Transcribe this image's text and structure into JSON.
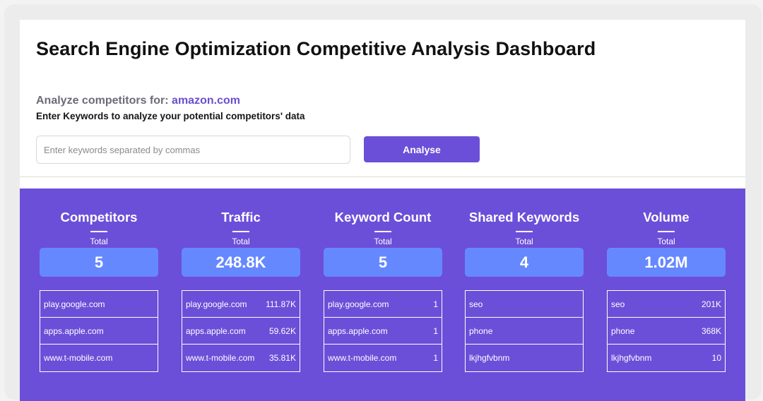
{
  "header": {
    "title": "Search Engine Optimization Competitive Analysis Dashboard",
    "analyze_prefix": "Analyze competitors for:",
    "analyze_domain": "amazon.com",
    "subtitle": "Enter Keywords to analyze your potential competitors' data"
  },
  "form": {
    "placeholder": "Enter keywords separated by commas",
    "value": "",
    "button_label": "Analyse"
  },
  "colors": {
    "accent": "#6b4fd8",
    "value_box": "#6688ff"
  },
  "stats": [
    {
      "title": "Competitors",
      "total_label": "Total",
      "value": "5",
      "rows": [
        {
          "name": "play.google.com",
          "value": ""
        },
        {
          "name": "apps.apple.com",
          "value": ""
        },
        {
          "name": "www.t-mobile.com",
          "value": ""
        }
      ]
    },
    {
      "title": "Traffic",
      "total_label": "Total",
      "value": "248.8K",
      "rows": [
        {
          "name": "play.google.com",
          "value": "111.87K"
        },
        {
          "name": "apps.apple.com",
          "value": "59.62K"
        },
        {
          "name": "www.t-mobile.com",
          "value": "35.81K"
        }
      ]
    },
    {
      "title": "Keyword Count",
      "total_label": "Total",
      "value": "5",
      "rows": [
        {
          "name": "play.google.com",
          "value": "1"
        },
        {
          "name": "apps.apple.com",
          "value": "1"
        },
        {
          "name": "www.t-mobile.com",
          "value": "1"
        }
      ]
    },
    {
      "title": "Shared Keywords",
      "total_label": "Total",
      "value": "4",
      "rows": [
        {
          "name": "seo",
          "value": ""
        },
        {
          "name": "phone",
          "value": ""
        },
        {
          "name": "lkjhgfvbnm",
          "value": ""
        }
      ]
    },
    {
      "title": "Volume",
      "total_label": "Total",
      "value": "1.02M",
      "rows": [
        {
          "name": "seo",
          "value": "201K"
        },
        {
          "name": "phone",
          "value": "368K"
        },
        {
          "name": "lkjhgfvbnm",
          "value": "10"
        }
      ]
    }
  ]
}
